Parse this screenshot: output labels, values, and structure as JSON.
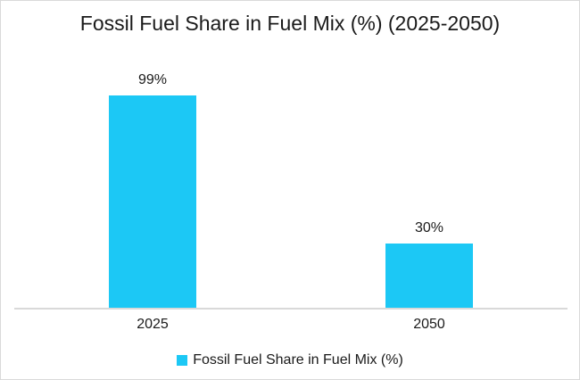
{
  "chart_data": {
    "type": "bar",
    "title": "Fossil Fuel Share in Fuel Mix (%) (2025-2050)",
    "categories": [
      "2025",
      "2050"
    ],
    "values": [
      99,
      30
    ],
    "data_labels": [
      "99%",
      "30%"
    ],
    "series_name": "Fossil Fuel Share in Fuel Mix (%)",
    "legend_position": "bottom",
    "grid": false,
    "xlabel": "",
    "ylabel": "",
    "ylim": [
      0,
      110
    ]
  },
  "colors": {
    "bar": "#1CC8F5",
    "axis_line": "#D9D9D9",
    "border": "#D9D9D9",
    "text": "#1A1A1A",
    "background": "#FFFFFF"
  }
}
